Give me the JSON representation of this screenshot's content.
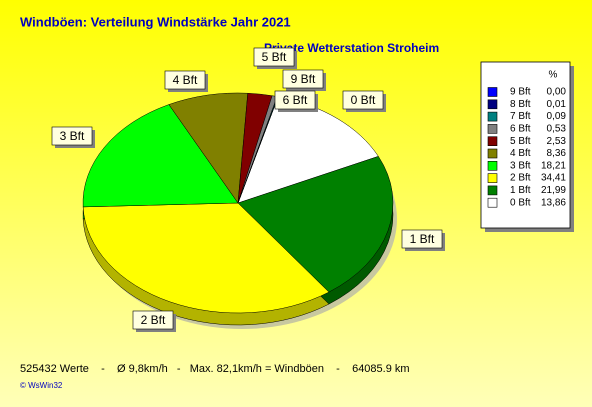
{
  "chart_data": {
    "type": "pie",
    "title": "Windböen: Verteilung Windstärke  Jahr 2021",
    "subtitle": "Private Wetterstation Stroheim",
    "legend_header": "%",
    "legend": "right",
    "categories": [
      "9 Bft",
      "8 Bft",
      "7 Bft",
      "6 Bft",
      "5 Bft",
      "4 Bft",
      "3 Bft",
      "2 Bft",
      "1 Bft",
      "0 Bft"
    ],
    "values": [
      0.0,
      0.01,
      0.09,
      0.53,
      2.53,
      8.36,
      18.21,
      34.41,
      21.99,
      13.86
    ],
    "value_labels": [
      "0,00",
      "0,01",
      "0,09",
      "0,53",
      "2,53",
      "8,36",
      "18,21",
      "34,41",
      "21,99",
      "13,86"
    ],
    "colors": [
      "#0000ff",
      "#000080",
      "#008080",
      "#808080",
      "#800000",
      "#808000",
      "#00ff00",
      "#ffff00",
      "#008000",
      "#ffffff"
    ],
    "footer": "525432 Werte    -    Ø 9,8km/h   -   Max. 82,1km/h = Windböen    -    64085.9 km",
    "credit": "© WsWin32"
  }
}
